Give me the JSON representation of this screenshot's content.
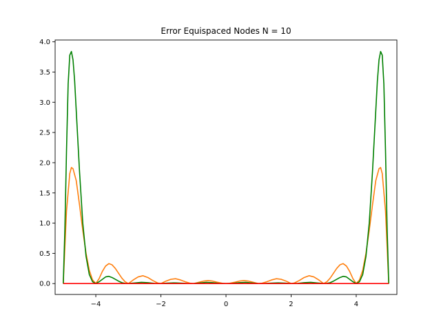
{
  "chart_data": {
    "type": "line",
    "title": "Error Equispaced Nodes N = 10",
    "xlabel": "",
    "ylabel": "",
    "xlim": [
      -5.25,
      5.25
    ],
    "ylim": [
      -0.18,
      4.03
    ],
    "grid": false,
    "x_ticks": [
      -4,
      -2,
      0,
      2,
      4
    ],
    "x_tick_labels": [
      "−4",
      "−2",
      "0",
      "2",
      "4"
    ],
    "y_ticks": [
      0.0,
      0.5,
      1.0,
      1.5,
      2.0,
      2.5,
      3.0,
      3.5,
      4.0
    ],
    "y_tick_labels": [
      "0.0",
      "0.5",
      "1.0",
      "1.5",
      "2.0",
      "2.5",
      "3.0",
      "3.5",
      "4.0"
    ],
    "series": [
      {
        "color": "#ff7f0e",
        "x": [
          -5,
          -4.9,
          -4.8,
          -4.75,
          -4.7,
          -4.6,
          -4.5,
          -4.4,
          -4.3,
          -4.2,
          -4.1,
          -4.0,
          -3.9,
          -3.8,
          -3.7,
          -3.6,
          -3.5,
          -3.4,
          -3.3,
          -3.2,
          -3.1,
          -3.0,
          -2.85,
          -2.7,
          -2.55,
          -2.4,
          -2.25,
          -2.1,
          -2.0,
          -1.85,
          -1.7,
          -1.55,
          -1.4,
          -1.25,
          -1.1,
          -1.0,
          -0.85,
          -0.7,
          -0.55,
          -0.4,
          -0.25,
          -0.1,
          0.0,
          0.1,
          0.25,
          0.4,
          0.55,
          0.7,
          0.85,
          1.0,
          1.1,
          1.25,
          1.4,
          1.55,
          1.7,
          1.85,
          2.0,
          2.1,
          2.25,
          2.4,
          2.55,
          2.7,
          2.85,
          3.0,
          3.1,
          3.2,
          3.3,
          3.4,
          3.5,
          3.6,
          3.7,
          3.8,
          3.9,
          4.0,
          4.1,
          4.2,
          4.3,
          4.4,
          4.5,
          4.6,
          4.7,
          4.75,
          4.8,
          4.9,
          5.0
        ],
        "values": [
          0.0,
          1.2,
          1.82,
          1.92,
          1.9,
          1.7,
          1.3,
          0.88,
          0.5,
          0.22,
          0.06,
          0.0,
          0.08,
          0.2,
          0.29,
          0.33,
          0.31,
          0.25,
          0.17,
          0.09,
          0.03,
          0.0,
          0.06,
          0.11,
          0.13,
          0.1,
          0.05,
          0.01,
          0.0,
          0.04,
          0.07,
          0.08,
          0.06,
          0.03,
          0.005,
          0.0,
          0.02,
          0.04,
          0.05,
          0.04,
          0.02,
          0.003,
          0.0,
          0.003,
          0.02,
          0.04,
          0.05,
          0.04,
          0.02,
          0.0,
          0.005,
          0.03,
          0.06,
          0.08,
          0.07,
          0.04,
          0.0,
          0.01,
          0.05,
          0.1,
          0.13,
          0.11,
          0.06,
          0.0,
          0.03,
          0.09,
          0.17,
          0.25,
          0.31,
          0.33,
          0.29,
          0.2,
          0.08,
          0.0,
          0.06,
          0.22,
          0.5,
          0.88,
          1.3,
          1.7,
          1.9,
          1.92,
          1.82,
          1.2,
          0.0
        ]
      },
      {
        "color": "#008000",
        "x": [
          -5,
          -4.95,
          -4.9,
          -4.85,
          -4.8,
          -4.75,
          -4.7,
          -4.65,
          -4.6,
          -4.5,
          -4.4,
          -4.3,
          -4.2,
          -4.1,
          -4.0,
          -3.9,
          -3.8,
          -3.7,
          -3.6,
          -3.5,
          -3.4,
          -3.3,
          -3.2,
          -3.1,
          -3.0,
          -2.8,
          -2.6,
          -2.4,
          -2.2,
          -2.0,
          -1.8,
          -1.6,
          -1.4,
          -1.2,
          -1.0,
          -0.8,
          -0.6,
          -0.4,
          -0.2,
          0.0,
          0.2,
          0.4,
          0.6,
          0.8,
          1.0,
          1.2,
          1.4,
          1.6,
          1.8,
          2.0,
          2.2,
          2.4,
          2.6,
          2.8,
          3.0,
          3.1,
          3.2,
          3.3,
          3.4,
          3.5,
          3.6,
          3.7,
          3.8,
          3.9,
          4.0,
          4.1,
          4.2,
          4.3,
          4.4,
          4.5,
          4.6,
          4.65,
          4.7,
          4.75,
          4.8,
          4.85,
          4.9,
          4.95,
          5.0
        ],
        "values": [
          0.0,
          0.9,
          2.2,
          3.3,
          3.78,
          3.84,
          3.7,
          3.35,
          2.85,
          1.85,
          1.0,
          0.45,
          0.15,
          0.03,
          0.0,
          0.03,
          0.07,
          0.11,
          0.12,
          0.1,
          0.07,
          0.04,
          0.015,
          0.003,
          0.0,
          0.01,
          0.02,
          0.015,
          0.003,
          0.0,
          0.008,
          0.012,
          0.008,
          0.002,
          0.0,
          0.01,
          0.02,
          0.015,
          0.004,
          0.0,
          0.004,
          0.015,
          0.02,
          0.01,
          0.0,
          0.002,
          0.008,
          0.012,
          0.008,
          0.0,
          0.003,
          0.015,
          0.02,
          0.01,
          0.0,
          0.003,
          0.015,
          0.04,
          0.07,
          0.1,
          0.12,
          0.11,
          0.07,
          0.03,
          0.0,
          0.03,
          0.15,
          0.45,
          1.0,
          1.85,
          2.85,
          3.35,
          3.7,
          3.84,
          3.78,
          3.3,
          2.2,
          0.9,
          0.0
        ]
      },
      {
        "color": "#ff0000",
        "x": [
          -5,
          5
        ],
        "values": [
          0.0,
          0.0
        ]
      }
    ]
  }
}
